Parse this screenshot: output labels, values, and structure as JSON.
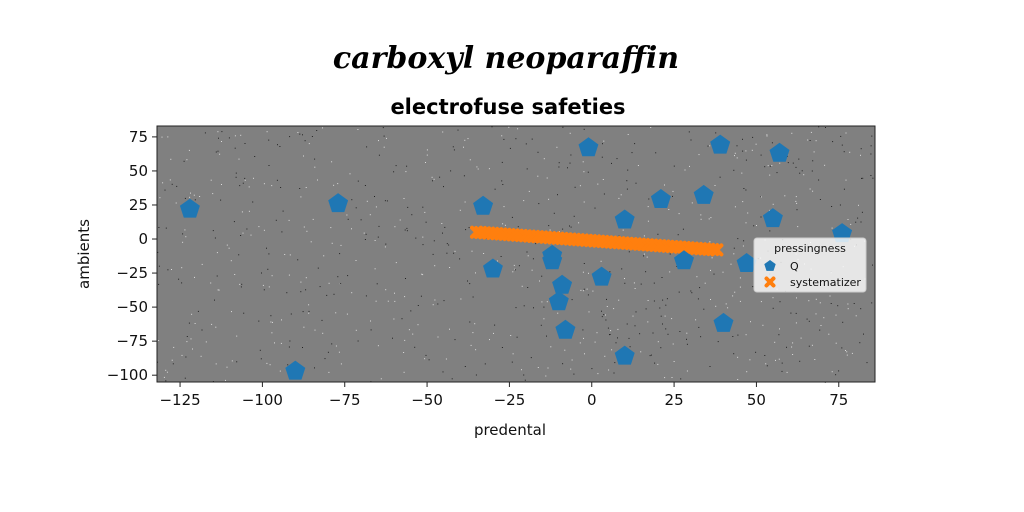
{
  "chart_data": {
    "type": "scatter",
    "title": "carboxyl neoparaffin",
    "subtitle": "electrofuse safeties",
    "xlabel": "predental",
    "ylabel": "ambients",
    "xlim": [
      -132,
      86
    ],
    "ylim": [
      -105,
      83
    ],
    "xticks": [
      -125,
      -100,
      -75,
      -50,
      -25,
      0,
      25,
      50,
      75
    ],
    "xtick_labels": [
      "−125",
      "−100",
      "−75",
      "−50",
      "−25",
      "0",
      "25",
      "50",
      "75"
    ],
    "yticks": [
      75,
      50,
      25,
      0,
      -25,
      -50,
      -75,
      -100
    ],
    "ytick_labels": [
      "75",
      "50",
      "25",
      "0",
      "−25",
      "−50",
      "−75",
      "−100"
    ],
    "grid": false,
    "legend": {
      "title": "pressingness",
      "placement": "center-right"
    },
    "colors": {
      "plot_bg": "#808080",
      "series_q": "#1f77b4",
      "series_s": "#ff7f0e"
    },
    "series": [
      {
        "name": "Q",
        "marker": "pentagon",
        "points": [
          [
            -122,
            22
          ],
          [
            -90,
            -97
          ],
          [
            -77,
            26
          ],
          [
            -33,
            24
          ],
          [
            -30,
            -22
          ],
          [
            -12,
            -16
          ],
          [
            -12,
            -12
          ],
          [
            -9,
            -34
          ],
          [
            -10,
            -46
          ],
          [
            -8,
            -67
          ],
          [
            -1,
            67
          ],
          [
            3,
            -28
          ],
          [
            10,
            14
          ],
          [
            10,
            -86
          ],
          [
            21,
            29
          ],
          [
            28,
            -16
          ],
          [
            34,
            32
          ],
          [
            39,
            69
          ],
          [
            40,
            -62
          ],
          [
            47,
            -18
          ],
          [
            55,
            15
          ],
          [
            57,
            63
          ],
          [
            76,
            4
          ]
        ]
      },
      {
        "name": "systematizer",
        "marker": "x",
        "x_range": [
          -35,
          38
        ],
        "y_start": 5,
        "y_end": -8,
        "n_points": 60
      }
    ]
  }
}
